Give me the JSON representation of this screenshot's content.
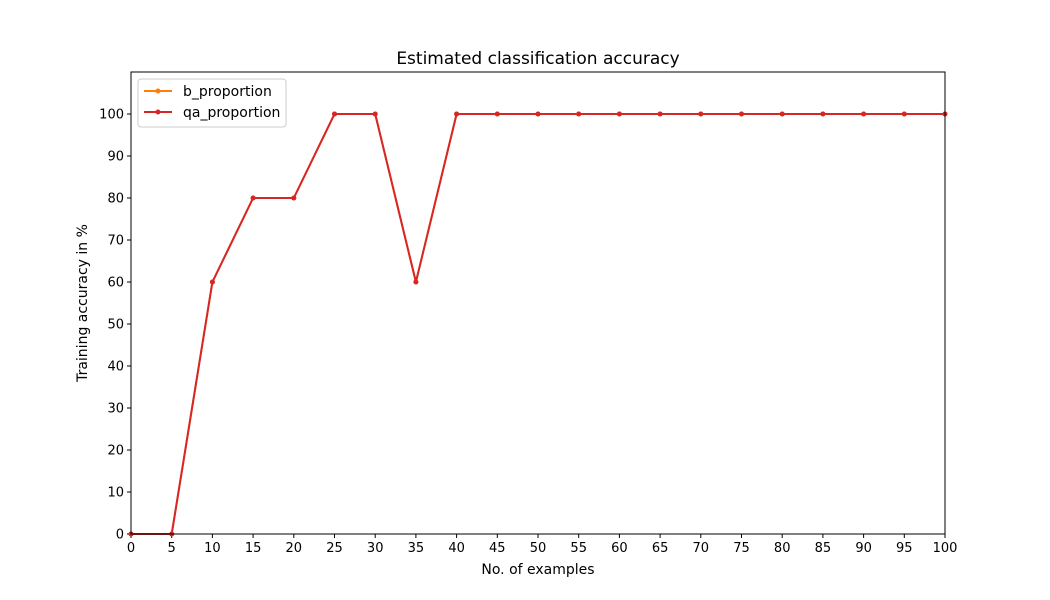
{
  "chart_data": {
    "type": "line",
    "title": "Estimated classification accuracy",
    "xlabel": "No. of examples",
    "ylabel": "Training accuracy in %",
    "xlim": [
      0,
      100
    ],
    "ylim": [
      0,
      110
    ],
    "xticks": [
      0,
      5,
      10,
      15,
      20,
      25,
      30,
      35,
      40,
      45,
      50,
      55,
      60,
      65,
      70,
      75,
      80,
      85,
      90,
      95,
      100
    ],
    "yticks": [
      0,
      10,
      20,
      30,
      40,
      50,
      60,
      70,
      80,
      90,
      100
    ],
    "grid": false,
    "legend_position": "top-left",
    "x": [
      0,
      5,
      10,
      15,
      20,
      25,
      30,
      35,
      40,
      45,
      50,
      55,
      60,
      65,
      70,
      75,
      80,
      85,
      90,
      95,
      100
    ],
    "series": [
      {
        "name": "b_proportion",
        "color": "#ff7f0e",
        "marker": "circle",
        "values": [
          0,
          0,
          60,
          80,
          80,
          100,
          100,
          60,
          100,
          100,
          100,
          100,
          100,
          100,
          100,
          100,
          100,
          100,
          100,
          100,
          100
        ]
      },
      {
        "name": "qa_proportion",
        "color": "#d62728",
        "marker": "circle",
        "values": [
          0,
          0,
          60,
          80,
          80,
          100,
          100,
          60,
          100,
          100,
          100,
          100,
          100,
          100,
          100,
          100,
          100,
          100,
          100,
          100,
          100
        ]
      }
    ]
  }
}
